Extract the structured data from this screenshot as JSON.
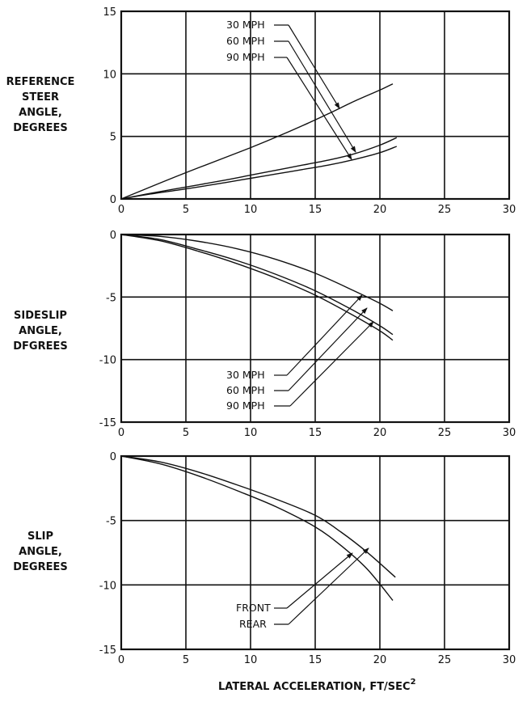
{
  "chart_data": [
    {
      "type": "line",
      "ylabel_lines": [
        "REFERENCE",
        "STEER",
        "ANGLE,",
        "DEGREES"
      ],
      "xlim": [
        0,
        30
      ],
      "ylim": [
        0,
        15
      ],
      "xticks": [
        0,
        5,
        10,
        15,
        20,
        25,
        30
      ],
      "yticks": [
        0,
        5,
        10,
        15
      ],
      "grid": true,
      "series": [
        {
          "name": "30 MPH",
          "x": [
            0,
            2,
            5,
            8,
            10,
            12,
            14,
            16,
            18,
            20,
            21
          ],
          "y": [
            0,
            0.85,
            2.1,
            3.3,
            4.1,
            4.95,
            5.85,
            6.8,
            7.8,
            8.7,
            9.2
          ]
        },
        {
          "name": "60 MPH",
          "x": [
            0,
            2,
            5,
            8,
            10,
            12,
            14,
            16,
            18,
            20,
            21.3
          ],
          "y": [
            0,
            0.4,
            0.95,
            1.5,
            1.9,
            2.3,
            2.7,
            3.1,
            3.6,
            4.3,
            4.9
          ]
        },
        {
          "name": "90 MPH",
          "x": [
            0,
            2,
            5,
            8,
            10,
            12,
            14,
            16,
            18,
            20,
            21.3
          ],
          "y": [
            0,
            0.35,
            0.8,
            1.3,
            1.65,
            2.0,
            2.35,
            2.7,
            3.15,
            3.7,
            4.2
          ]
        }
      ],
      "annotation_labels": [
        "30 MPH",
        "60 MPH",
        "90 MPH"
      ]
    },
    {
      "type": "line",
      "ylabel_lines": [
        "SIDESLIP",
        "ANGLE,",
        "DFGREES"
      ],
      "xlim": [
        0,
        30
      ],
      "ylim": [
        -15,
        0
      ],
      "xticks": [
        0,
        5,
        10,
        15,
        20,
        25,
        30
      ],
      "yticks": [
        0,
        -5,
        -10,
        -15
      ],
      "grid": true,
      "series": [
        {
          "name": "30 MPH",
          "x": [
            0,
            3,
            6,
            9,
            12,
            15,
            18,
            20,
            21
          ],
          "y": [
            0,
            -0.15,
            -0.55,
            -1.15,
            -2.0,
            -3.1,
            -4.5,
            -5.5,
            -6.1
          ]
        },
        {
          "name": "60 MPH",
          "x": [
            0,
            3,
            6,
            9,
            12,
            15,
            18,
            20,
            21
          ],
          "y": [
            0,
            -0.4,
            -1.2,
            -2.1,
            -3.2,
            -4.5,
            -6.1,
            -7.3,
            -8.0
          ]
        },
        {
          "name": "90 MPH",
          "x": [
            0,
            3,
            6,
            9,
            12,
            15,
            18,
            20,
            21
          ],
          "y": [
            0,
            -0.5,
            -1.35,
            -2.35,
            -3.5,
            -4.85,
            -6.5,
            -7.7,
            -8.45
          ]
        }
      ],
      "annotation_labels": [
        "30 MPH",
        "60 MPH",
        "90 MPH"
      ]
    },
    {
      "type": "line",
      "ylabel_lines": [
        "SLIP",
        "ANGLE,",
        "DEGREES"
      ],
      "xlim": [
        0,
        30
      ],
      "ylim": [
        -15,
        0
      ],
      "xticks": [
        0,
        5,
        10,
        15,
        20,
        25,
        30
      ],
      "yticks": [
        0,
        -5,
        -10,
        -15
      ],
      "grid": true,
      "xlabel": "LATERAL ACCELERATION,  FT/SEC",
      "xlabel_superscript": "2",
      "series": [
        {
          "name": "FRONT",
          "x": [
            0,
            3,
            6,
            9,
            12,
            15,
            17,
            19,
            21.2
          ],
          "y": [
            0,
            -0.45,
            -1.25,
            -2.25,
            -3.35,
            -4.6,
            -5.9,
            -7.45,
            -9.4
          ]
        },
        {
          "name": "REAR",
          "x": [
            0,
            3,
            6,
            9,
            12,
            15,
            17,
            19,
            21
          ],
          "y": [
            0,
            -0.6,
            -1.55,
            -2.7,
            -3.95,
            -5.5,
            -6.95,
            -8.75,
            -11.2
          ]
        }
      ],
      "annotation_labels": [
        "FRONT",
        "REAR"
      ]
    }
  ]
}
